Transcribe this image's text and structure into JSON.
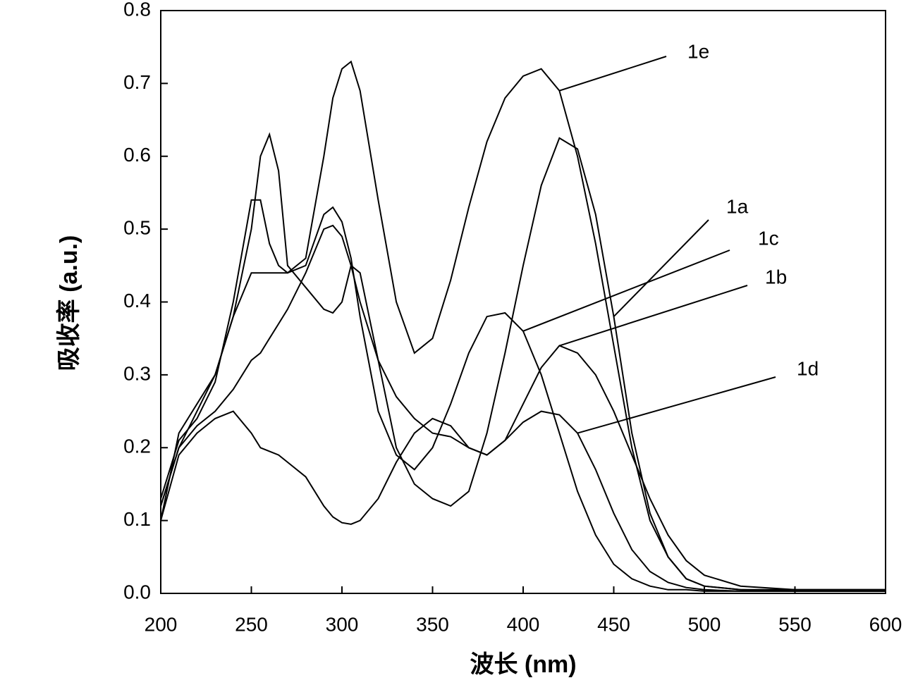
{
  "chart_data": {
    "type": "line",
    "xlabel": "波长 (nm)",
    "ylabel": "吸收率 (a.u.)",
    "x": [
      200,
      210,
      220,
      230,
      240,
      250,
      255,
      260,
      265,
      270,
      280,
      290,
      295,
      300,
      305,
      310,
      320,
      330,
      340,
      350,
      360,
      370,
      380,
      390,
      400,
      410,
      420,
      430,
      440,
      450,
      460,
      470,
      480,
      490,
      500,
      520,
      550,
      600
    ],
    "series": [
      {
        "name": "1e",
        "color": "#000000",
        "values": [
          0.1,
          0.22,
          0.26,
          0.3,
          0.38,
          0.44,
          0.44,
          0.44,
          0.44,
          0.44,
          0.46,
          0.6,
          0.68,
          0.72,
          0.73,
          0.69,
          0.54,
          0.4,
          0.33,
          0.35,
          0.43,
          0.53,
          0.62,
          0.68,
          0.71,
          0.72,
          0.69,
          0.6,
          0.48,
          0.34,
          0.2,
          0.1,
          0.05,
          0.02,
          0.01,
          0.005,
          0.005,
          0.005
        ]
      },
      {
        "name": "1a",
        "color": "#000000",
        "values": [
          0.12,
          0.2,
          0.25,
          0.3,
          0.38,
          0.5,
          0.6,
          0.63,
          0.58,
          0.45,
          0.42,
          0.39,
          0.385,
          0.4,
          0.45,
          0.44,
          0.32,
          0.2,
          0.15,
          0.13,
          0.12,
          0.14,
          0.22,
          0.33,
          0.45,
          0.56,
          0.625,
          0.61,
          0.52,
          0.38,
          0.22,
          0.11,
          0.05,
          0.02,
          0.01,
          0.005,
          0.003,
          0.003
        ]
      },
      {
        "name": "1c",
        "color": "#000000",
        "values": [
          0.13,
          0.21,
          0.24,
          0.29,
          0.4,
          0.54,
          0.54,
          0.48,
          0.45,
          0.44,
          0.45,
          0.52,
          0.53,
          0.51,
          0.46,
          0.38,
          0.25,
          0.19,
          0.17,
          0.2,
          0.26,
          0.33,
          0.38,
          0.385,
          0.36,
          0.3,
          0.22,
          0.14,
          0.08,
          0.04,
          0.02,
          0.01,
          0.005,
          0.005,
          0.003,
          0.003,
          0.003,
          0.003
        ]
      },
      {
        "name": "1b",
        "color": "#000000",
        "values": [
          0.12,
          0.2,
          0.23,
          0.25,
          0.28,
          0.32,
          0.33,
          0.35,
          0.37,
          0.39,
          0.44,
          0.5,
          0.505,
          0.49,
          0.45,
          0.4,
          0.32,
          0.27,
          0.24,
          0.22,
          0.215,
          0.2,
          0.19,
          0.21,
          0.26,
          0.31,
          0.34,
          0.33,
          0.3,
          0.25,
          0.19,
          0.13,
          0.08,
          0.045,
          0.025,
          0.01,
          0.005,
          0.005
        ]
      },
      {
        "name": "1d",
        "color": "#000000",
        "values": [
          0.1,
          0.19,
          0.22,
          0.24,
          0.25,
          0.22,
          0.2,
          0.195,
          0.19,
          0.18,
          0.16,
          0.12,
          0.105,
          0.097,
          0.095,
          0.1,
          0.13,
          0.18,
          0.22,
          0.24,
          0.23,
          0.2,
          0.19,
          0.21,
          0.235,
          0.25,
          0.245,
          0.22,
          0.17,
          0.11,
          0.06,
          0.03,
          0.015,
          0.008,
          0.005,
          0.003,
          0.003,
          0.003
        ]
      }
    ],
    "xlim": [
      200,
      600
    ],
    "xticks": [
      200,
      250,
      300,
      350,
      400,
      450,
      500,
      550,
      600
    ],
    "ylim": [
      0,
      0.8
    ],
    "yticks": [
      {
        "value": 0,
        "label": "0.0"
      },
      0.1,
      0.2,
      0.3,
      0.4,
      0.5,
      0.6,
      0.7,
      0.8
    ]
  }
}
